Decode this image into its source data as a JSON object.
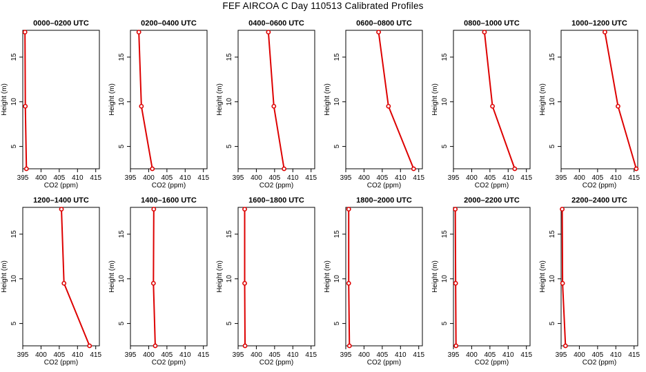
{
  "page_title": "FEF AIRCOA C  Day 110513  Calibrated Profiles",
  "colors": {
    "series": "#dd0000",
    "axis": "#000000",
    "background": "#ffffff"
  },
  "chart_data": [
    {
      "type": "line",
      "title": "0000–0200 UTC",
      "xlabel": "CO2 (ppm)",
      "ylabel": "Height (m)",
      "xlim": [
        395,
        416
      ],
      "ylim": [
        2.5,
        18
      ],
      "xticks": [
        395,
        400,
        405,
        410,
        415
      ],
      "yticks": [
        5,
        10,
        15
      ],
      "series": [
        {
          "name": "CO2 profile",
          "points": [
            {
              "x": 396.0,
              "y": 2.5
            },
            {
              "x": 395.7,
              "y": 9.5
            },
            {
              "x": 395.6,
              "y": 17.8
            }
          ]
        }
      ]
    },
    {
      "type": "line",
      "title": "0200–0400 UTC",
      "xlabel": "CO2 (ppm)",
      "ylabel": "Height (m)",
      "xlim": [
        395,
        416
      ],
      "ylim": [
        2.5,
        18
      ],
      "xticks": [
        395,
        400,
        405,
        410,
        415
      ],
      "yticks": [
        5,
        10,
        15
      ],
      "series": [
        {
          "name": "CO2 profile",
          "points": [
            {
              "x": 401.0,
              "y": 2.5
            },
            {
              "x": 398.0,
              "y": 9.5
            },
            {
              "x": 397.3,
              "y": 17.8
            }
          ]
        }
      ]
    },
    {
      "type": "line",
      "title": "0400–0600 UTC",
      "xlabel": "CO2 (ppm)",
      "ylabel": "Height (m)",
      "xlim": [
        395,
        416
      ],
      "ylim": [
        2.5,
        18
      ],
      "xticks": [
        395,
        400,
        405,
        410,
        415
      ],
      "yticks": [
        5,
        10,
        15
      ],
      "series": [
        {
          "name": "CO2 profile",
          "points": [
            {
              "x": 407.6,
              "y": 2.5
            },
            {
              "x": 404.8,
              "y": 9.5
            },
            {
              "x": 403.3,
              "y": 17.8
            }
          ]
        }
      ]
    },
    {
      "type": "line",
      "title": "0600–0800 UTC",
      "xlabel": "CO2 (ppm)",
      "ylabel": "Height (m)",
      "xlim": [
        395,
        416
      ],
      "ylim": [
        2.5,
        18
      ],
      "xticks": [
        395,
        400,
        405,
        410,
        415
      ],
      "yticks": [
        5,
        10,
        15
      ],
      "series": [
        {
          "name": "CO2 profile",
          "points": [
            {
              "x": 413.6,
              "y": 2.5
            },
            {
              "x": 406.7,
              "y": 9.5
            },
            {
              "x": 404.0,
              "y": 17.8
            }
          ]
        }
      ]
    },
    {
      "type": "line",
      "title": "0800–1000 UTC",
      "xlabel": "CO2 (ppm)",
      "ylabel": "Height (m)",
      "xlim": [
        395,
        416
      ],
      "ylim": [
        2.5,
        18
      ],
      "xticks": [
        395,
        400,
        405,
        410,
        415
      ],
      "yticks": [
        5,
        10,
        15
      ],
      "series": [
        {
          "name": "CO2 profile",
          "points": [
            {
              "x": 411.8,
              "y": 2.5
            },
            {
              "x": 405.7,
              "y": 9.5
            },
            {
              "x": 403.5,
              "y": 17.8
            }
          ]
        }
      ]
    },
    {
      "type": "line",
      "title": "1000–1200 UTC",
      "xlabel": "CO2 (ppm)",
      "ylabel": "Height (m)",
      "xlim": [
        395,
        416
      ],
      "ylim": [
        2.5,
        18
      ],
      "xticks": [
        395,
        400,
        405,
        410,
        415
      ],
      "yticks": [
        5,
        10,
        15
      ],
      "series": [
        {
          "name": "CO2 profile",
          "points": [
            {
              "x": 415.6,
              "y": 2.5
            },
            {
              "x": 410.6,
              "y": 9.5
            },
            {
              "x": 407.0,
              "y": 17.8
            }
          ]
        }
      ]
    },
    {
      "type": "line",
      "title": "1200–1400 UTC",
      "xlabel": "CO2 (ppm)",
      "ylabel": "Height (m)",
      "xlim": [
        395,
        416
      ],
      "ylim": [
        2.5,
        18
      ],
      "xticks": [
        395,
        400,
        405,
        410,
        415
      ],
      "yticks": [
        5,
        10,
        15
      ],
      "series": [
        {
          "name": "CO2 profile",
          "points": [
            {
              "x": 413.3,
              "y": 2.5
            },
            {
              "x": 406.3,
              "y": 9.5
            },
            {
              "x": 405.6,
              "y": 17.8
            }
          ]
        }
      ]
    },
    {
      "type": "line",
      "title": "1400–1600 UTC",
      "xlabel": "CO2 (ppm)",
      "ylabel": "Height (m)",
      "xlim": [
        395,
        416
      ],
      "ylim": [
        2.5,
        18
      ],
      "xticks": [
        395,
        400,
        405,
        410,
        415
      ],
      "yticks": [
        5,
        10,
        15
      ],
      "series": [
        {
          "name": "CO2 profile",
          "points": [
            {
              "x": 401.8,
              "y": 2.5
            },
            {
              "x": 401.3,
              "y": 9.5
            },
            {
              "x": 401.4,
              "y": 17.8
            }
          ]
        }
      ]
    },
    {
      "type": "line",
      "title": "1600–1800 UTC",
      "xlabel": "CO2 (ppm)",
      "ylabel": "Height (m)",
      "xlim": [
        395,
        416
      ],
      "ylim": [
        2.5,
        18
      ],
      "xticks": [
        395,
        400,
        405,
        410,
        415
      ],
      "yticks": [
        5,
        10,
        15
      ],
      "series": [
        {
          "name": "CO2 profile",
          "points": [
            {
              "x": 396.9,
              "y": 2.5
            },
            {
              "x": 396.8,
              "y": 9.5
            },
            {
              "x": 396.8,
              "y": 17.8
            }
          ]
        }
      ]
    },
    {
      "type": "line",
      "title": "1800–2000 UTC",
      "xlabel": "CO2 (ppm)",
      "ylabel": "Height (m)",
      "xlim": [
        395,
        416
      ],
      "ylim": [
        2.5,
        18
      ],
      "xticks": [
        395,
        400,
        405,
        410,
        415
      ],
      "yticks": [
        5,
        10,
        15
      ],
      "series": [
        {
          "name": "CO2 profile",
          "points": [
            {
              "x": 396.0,
              "y": 2.5
            },
            {
              "x": 395.8,
              "y": 9.5
            },
            {
              "x": 395.8,
              "y": 17.8
            }
          ]
        }
      ]
    },
    {
      "type": "line",
      "title": "2000–2200 UTC",
      "xlabel": "CO2 (ppm)",
      "ylabel": "Height (m)",
      "xlim": [
        395,
        416
      ],
      "ylim": [
        2.5,
        18
      ],
      "xticks": [
        395,
        400,
        405,
        410,
        415
      ],
      "yticks": [
        5,
        10,
        15
      ],
      "series": [
        {
          "name": "CO2 profile",
          "points": [
            {
              "x": 395.7,
              "y": 2.5
            },
            {
              "x": 395.6,
              "y": 9.5
            },
            {
              "x": 395.5,
              "y": 17.8
            }
          ]
        }
      ]
    },
    {
      "type": "line",
      "title": "2200–2400 UTC",
      "xlabel": "CO2 (ppm)",
      "ylabel": "Height (m)",
      "xlim": [
        395,
        416
      ],
      "ylim": [
        2.5,
        18
      ],
      "xticks": [
        395,
        400,
        405,
        410,
        415
      ],
      "yticks": [
        5,
        10,
        15
      ],
      "series": [
        {
          "name": "CO2 profile",
          "points": [
            {
              "x": 396.2,
              "y": 2.5
            },
            {
              "x": 395.4,
              "y": 9.5
            },
            {
              "x": 395.3,
              "y": 17.8
            }
          ]
        }
      ]
    }
  ]
}
